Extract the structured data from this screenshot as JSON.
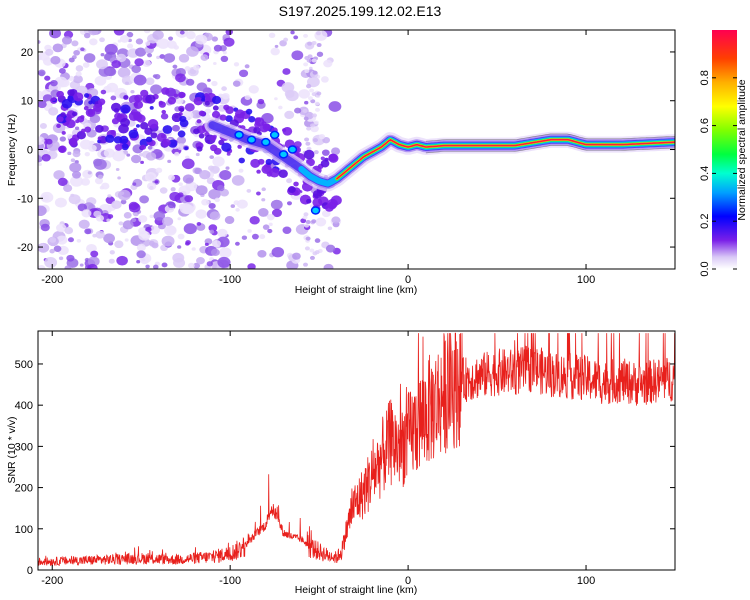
{
  "title": "S197.2025.199.12.02.E13",
  "chart_data": [
    {
      "type": "heatmap",
      "name": "spectrogram",
      "xlabel": "Height of straight line (km)",
      "ylabel": "Frequency (Hz)",
      "xlim": [
        -208,
        150
      ],
      "ylim": [
        -24.5,
        24.5
      ],
      "xticks": [
        -200,
        -100,
        0,
        100
      ],
      "xtick_labels": [
        "-200",
        "-100",
        "0",
        "100"
      ],
      "yticks": [
        -20,
        -10,
        0,
        10,
        20
      ],
      "ytick_labels": [
        "-20",
        "-10",
        "0",
        "10",
        "20"
      ],
      "ridge": {
        "x": [
          -120,
          -110,
          -100,
          -90,
          -80,
          -70,
          -60,
          -55,
          -50,
          -45,
          -40,
          -35,
          -30,
          -25,
          -20,
          -15,
          -10,
          -5,
          0,
          5,
          10,
          20,
          40,
          60,
          80,
          90,
          100,
          120,
          150
        ],
        "y": [
          6,
          5,
          3.5,
          2,
          1,
          -1.5,
          -4,
          -5.5,
          -6.5,
          -7,
          -6,
          -4.5,
          -3,
          -1.5,
          -0.5,
          0.5,
          2,
          1,
          0.5,
          1,
          0.5,
          0.8,
          0.8,
          0.8,
          2,
          2,
          1,
          1,
          1.5
        ]
      },
      "colorbar": {
        "label": "Normalized spectral amplitude",
        "range": [
          0,
          1
        ],
        "ticks": [
          0.0,
          0.2,
          0.4,
          0.6,
          0.8
        ],
        "tick_labels": [
          "0.0",
          "0.2",
          "0.4",
          "0.6",
          "0.8"
        ],
        "colors": [
          "#d9c8f6",
          "#7a20e8",
          "#0000ff",
          "#00c8ff",
          "#00ff40",
          "#c8ff00",
          "#ffb000",
          "#ff0050"
        ]
      }
    },
    {
      "type": "line",
      "name": "snr",
      "xlabel": "Height of straight line (km)",
      "ylabel": "SNR (10 * v/v)",
      "xlim": [
        -208,
        150
      ],
      "ylim": [
        0,
        580
      ],
      "xticks": [
        -200,
        -100,
        0,
        100
      ],
      "xtick_labels": [
        "-200",
        "-100",
        "0",
        "100"
      ],
      "yticks": [
        0,
        100,
        200,
        300,
        400,
        500
      ],
      "ytick_labels": [
        "0",
        "100",
        "200",
        "300",
        "400",
        "500"
      ],
      "color": "#e8201c",
      "series": [
        {
          "x": [
            -208,
            -190,
            -170,
            -150,
            -130,
            -110,
            -100,
            -95,
            -90,
            -85,
            -80,
            -77,
            -75,
            -70,
            -65,
            -60,
            -55,
            -50,
            -45,
            -40,
            -37,
            -35,
            -32,
            -30,
            -27,
            -25,
            -20,
            -15,
            -10,
            -5,
            0,
            5,
            10,
            15,
            20,
            25,
            30,
            40,
            50,
            60,
            70,
            80,
            90,
            100,
            110,
            120,
            130,
            140,
            150
          ],
          "y": [
            20,
            22,
            25,
            28,
            25,
            32,
            40,
            50,
            65,
            90,
            110,
            150,
            140,
            90,
            80,
            75,
            55,
            45,
            35,
            30,
            50,
            90,
            140,
            160,
            175,
            190,
            230,
            270,
            310,
            300,
            320,
            350,
            380,
            400,
            430,
            450,
            460,
            470,
            480,
            480,
            490,
            475,
            470,
            465,
            455,
            460,
            450,
            460,
            465
          ]
        }
      ]
    }
  ]
}
